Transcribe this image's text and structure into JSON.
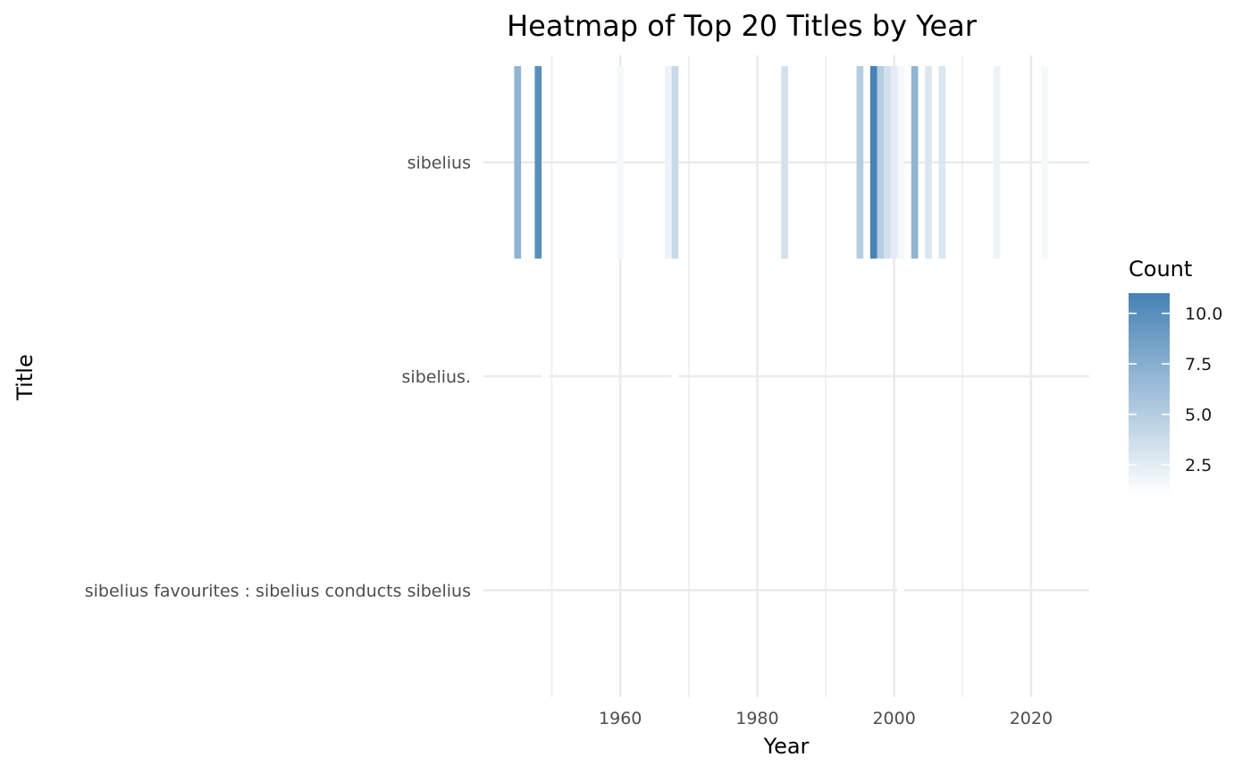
{
  "chart_data": {
    "type": "heatmap",
    "title": "Heatmap of Top 20 Titles by Year",
    "xlabel": "Year",
    "ylabel": "Title",
    "xlim": [
      1940,
      2028.5
    ],
    "x_ticks": [
      1960,
      1980,
      2000,
      2020
    ],
    "x_tick_labels": [
      "1960",
      "1980",
      "2000",
      "2020"
    ],
    "categories": [
      "sibelius",
      "sibelius.",
      "sibelius favourites : sibelius conducts sibelius"
    ],
    "grid": true,
    "legend": {
      "title": "Count",
      "position": "right",
      "low_color": "#ffffff",
      "high_color": "#4682b4",
      "range": [
        1,
        11
      ],
      "breaks": [
        2.5,
        5.0,
        7.5,
        10.0
      ],
      "break_labels": [
        "2.5",
        "5.0",
        "7.5",
        "10.0"
      ]
    },
    "cells": [
      {
        "title": "sibelius",
        "x": 1945,
        "count": 7
      },
      {
        "title": "sibelius",
        "x": 1948,
        "count": 10
      },
      {
        "title": "sibelius",
        "x": 1960,
        "count": 1.5
      },
      {
        "title": "sibelius",
        "x": 1967,
        "count": 2
      },
      {
        "title": "sibelius",
        "x": 1968,
        "count": 4
      },
      {
        "title": "sibelius",
        "x": 1984,
        "count": 3.5
      },
      {
        "title": "sibelius",
        "x": 1995,
        "count": 5
      },
      {
        "title": "sibelius",
        "x": 1997,
        "count": 11
      },
      {
        "title": "sibelius",
        "x": 1998,
        "count": 5
      },
      {
        "title": "sibelius",
        "x": 1999,
        "count": 3.5
      },
      {
        "title": "sibelius",
        "x": 2000,
        "count": 2.5
      },
      {
        "title": "sibelius",
        "x": 2001,
        "count": 1.5
      },
      {
        "title": "sibelius",
        "x": 2003,
        "count": 7
      },
      {
        "title": "sibelius",
        "x": 2005,
        "count": 3
      },
      {
        "title": "sibelius",
        "x": 2007,
        "count": 3
      },
      {
        "title": "sibelius",
        "x": 2015,
        "count": 2
      },
      {
        "title": "sibelius",
        "x": 2022,
        "count": 1.5
      },
      {
        "title": "sibelius.",
        "x": 1949,
        "count": 1
      },
      {
        "title": "sibelius.",
        "x": 1968,
        "count": 1
      },
      {
        "title": "sibelius favourites : sibelius conducts sibelius",
        "x": 2001,
        "count": 1
      }
    ]
  }
}
